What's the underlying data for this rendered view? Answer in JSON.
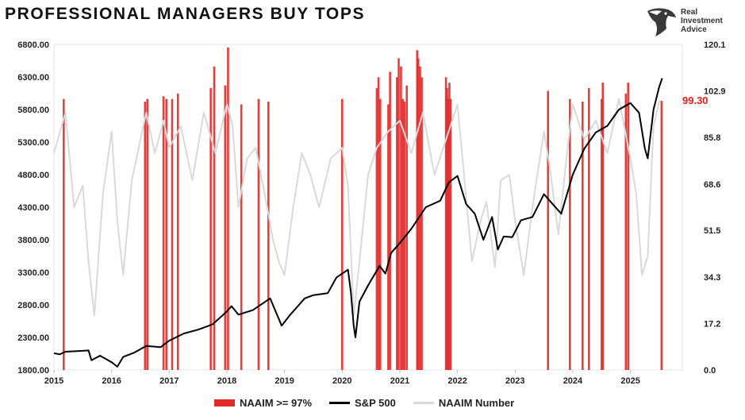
{
  "title": "PROFESSIONAL MANAGERS BUY TOPS",
  "logo": {
    "icon": "eagle-head-icon",
    "lines": [
      "Real",
      "Investment",
      "Advice"
    ]
  },
  "legend": {
    "naaim_97": "NAAIM >= 97%",
    "sp500": "S&P 500",
    "naaim": "NAAIM Number"
  },
  "annotation": {
    "text": "99.30",
    "color": "#e0201c"
  },
  "colors": {
    "bars": "#e02a2a",
    "sp500": "#000000",
    "naaim": "#d9d9d9",
    "annotation": "#e0201c"
  },
  "chart_data": {
    "type": "line",
    "title": "PROFESSIONAL MANAGERS BUY TOPS",
    "xlim": [
      2015.0,
      2025.9
    ],
    "x_ticks": [
      "2015",
      "2016",
      "2017",
      "2018",
      "2019",
      "2020",
      "2021",
      "2022",
      "2023",
      "2024",
      "2025"
    ],
    "y_left_ticks": [
      "6800.00",
      "6300.00",
      "5800.00",
      "5300.00",
      "4800.00",
      "4300.00",
      "3800.00",
      "3300.00",
      "2800.00",
      "2300.00",
      "1800.00"
    ],
    "y_left_range": [
      1800,
      6800
    ],
    "y_right_ticks": [
      "120.1",
      "102.9",
      "85.8",
      "68.6",
      "51.5",
      "34.3",
      "17.2",
      "0.0"
    ],
    "y_right_range": [
      0,
      120.1
    ],
    "legend_position": "bottom",
    "grid": false,
    "series": [
      {
        "name": "S&P 500",
        "axis": "left",
        "style": "line",
        "x": [
          2015.0,
          2015.1,
          2015.2,
          2015.4,
          2015.6,
          2015.65,
          2015.8,
          2016.0,
          2016.1,
          2016.2,
          2016.4,
          2016.6,
          2016.85,
          2017.0,
          2017.25,
          2017.5,
          2017.75,
          2018.0,
          2018.08,
          2018.2,
          2018.45,
          2018.75,
          2018.95,
          2019.1,
          2019.35,
          2019.5,
          2019.75,
          2019.9,
          2020.1,
          2020.15,
          2020.2,
          2020.23,
          2020.3,
          2020.45,
          2020.65,
          2020.75,
          2020.85,
          2021.0,
          2021.2,
          2021.45,
          2021.7,
          2021.85,
          2022.0,
          2022.15,
          2022.3,
          2022.45,
          2022.6,
          2022.7,
          2022.8,
          2022.95,
          2023.1,
          2023.3,
          2023.5,
          2023.65,
          2023.8,
          2024.0,
          2024.2,
          2024.4,
          2024.6,
          2024.8,
          2025.0,
          2025.15,
          2025.25,
          2025.3,
          2025.4,
          2025.5,
          2025.55
        ],
        "values": [
          2058,
          2040,
          2080,
          2090,
          2100,
          1950,
          2020,
          1920,
          1850,
          2000,
          2070,
          2170,
          2150,
          2250,
          2360,
          2420,
          2500,
          2700,
          2780,
          2650,
          2720,
          2900,
          2480,
          2650,
          2900,
          2950,
          2980,
          3220,
          3340,
          3000,
          2480,
          2300,
          2850,
          3100,
          3400,
          3280,
          3600,
          3750,
          3970,
          4300,
          4400,
          4680,
          4780,
          4350,
          4200,
          3800,
          4150,
          3650,
          3850,
          3840,
          4100,
          4150,
          4500,
          4350,
          4200,
          4800,
          5200,
          5450,
          5550,
          5800,
          5900,
          5750,
          5200,
          5050,
          5800,
          6150,
          6280
        ]
      },
      {
        "name": "NAAIM Number",
        "axis": "right",
        "style": "line",
        "x": [
          2015.0,
          2015.2,
          2015.35,
          2015.5,
          2015.6,
          2015.7,
          2015.85,
          2016.0,
          2016.1,
          2016.2,
          2016.35,
          2016.5,
          2016.6,
          2016.75,
          2016.9,
          2017.0,
          2017.2,
          2017.4,
          2017.6,
          2017.8,
          2018.0,
          2018.1,
          2018.2,
          2018.35,
          2018.5,
          2018.7,
          2018.8,
          2018.9,
          2019.0,
          2019.15,
          2019.3,
          2019.45,
          2019.6,
          2019.8,
          2020.0,
          2020.1,
          2020.2,
          2020.3,
          2020.45,
          2020.6,
          2020.8,
          2021.0,
          2021.2,
          2021.4,
          2021.6,
          2021.8,
          2022.0,
          2022.1,
          2022.25,
          2022.4,
          2022.5,
          2022.65,
          2022.75,
          2022.9,
          2023.0,
          2023.15,
          2023.3,
          2023.5,
          2023.6,
          2023.75,
          2023.9,
          2024.0,
          2024.2,
          2024.4,
          2024.6,
          2024.8,
          2025.0,
          2025.1,
          2025.2,
          2025.3,
          2025.4,
          2025.5
        ],
        "values": [
          80,
          95,
          60,
          68,
          40,
          20,
          65,
          88,
          55,
          35,
          70,
          85,
          95,
          80,
          92,
          82,
          90,
          70,
          95,
          80,
          98,
          90,
          60,
          78,
          82,
          60,
          48,
          40,
          35,
          60,
          80,
          72,
          60,
          78,
          82,
          68,
          20,
          40,
          72,
          82,
          88,
          92,
          80,
          95,
          72,
          85,
          98,
          75,
          40,
          55,
          62,
          38,
          70,
          72,
          55,
          35,
          60,
          88,
          75,
          50,
          80,
          98,
          85,
          92,
          80,
          100,
          78,
          65,
          35,
          42,
          90,
          99.3
        ]
      },
      {
        "name": "NAAIM >= 97%",
        "axis": "right",
        "style": "bars",
        "x": [
          2015.17,
          2016.58,
          2016.62,
          2016.9,
          2016.95,
          2017.05,
          2017.15,
          2017.72,
          2017.78,
          2017.97,
          2018.02,
          2018.25,
          2018.55,
          2018.72,
          2020.0,
          2020.6,
          2020.63,
          2020.66,
          2020.8,
          2020.83,
          2020.95,
          2020.98,
          2021.02,
          2021.05,
          2021.08,
          2021.12,
          2021.3,
          2021.32,
          2021.35,
          2021.38,
          2021.8,
          2021.82,
          2021.84,
          2021.86,
          2021.88,
          2023.57,
          2023.95,
          2024.17,
          2024.28,
          2024.5,
          2024.52,
          2024.92,
          2024.96,
          2025.54
        ],
        "values": [
          100,
          99,
          100,
          101,
          100,
          100,
          102,
          104,
          112,
          105,
          119,
          98,
          100,
          99,
          100,
          104,
          108,
          100,
          98,
          110,
          108,
          115,
          112,
          100,
          99,
          105,
          118,
          115,
          112,
          108,
          108,
          104,
          100,
          106,
          100,
          103,
          100,
          99,
          104,
          100,
          106,
          102,
          106,
          99.3
        ]
      }
    ]
  }
}
